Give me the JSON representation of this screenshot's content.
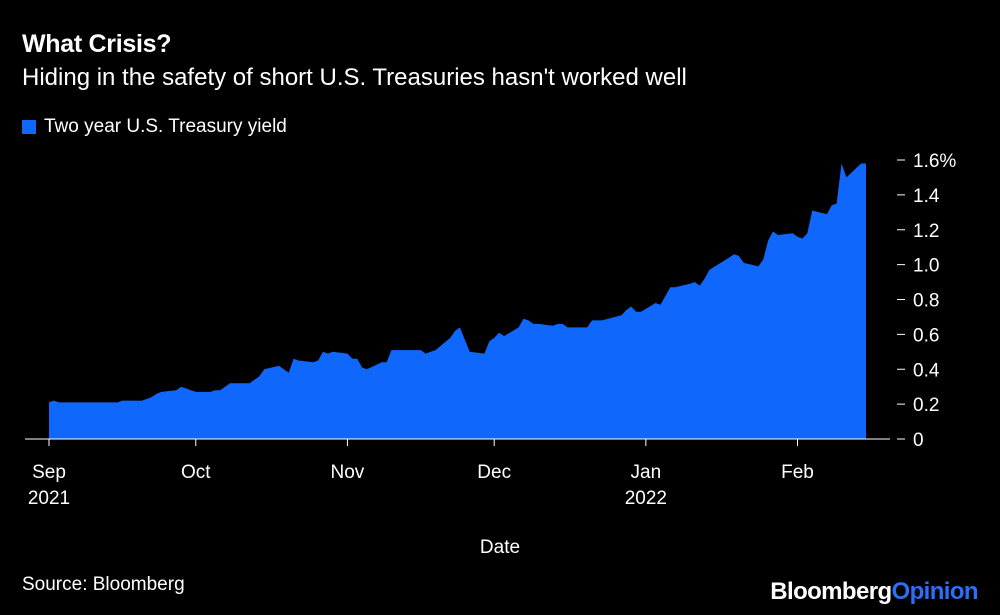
{
  "colors": {
    "background": "#000000",
    "area": "#0f68fb",
    "text": "#ffffff",
    "brand_accent": "#2c6ff5"
  },
  "header": {
    "title": "What Crisis?",
    "subtitle": "Hiding in the safety of short U.S. Treasuries hasn't worked well"
  },
  "footer": {
    "source": "Source: Bloomberg",
    "brand_main": "Bloomberg",
    "brand_accent": "Opinion"
  },
  "chart_data": {
    "type": "area",
    "legend": {
      "position": "top-left",
      "entries": [
        "Two year U.S. Treasury yield"
      ]
    },
    "series": [
      {
        "name": "Two year U.S. Treasury yield",
        "points": [
          [
            "2021-09-01",
            0.21
          ],
          [
            "2021-09-02",
            0.22
          ],
          [
            "2021-09-03",
            0.21
          ],
          [
            "2021-09-07",
            0.21
          ],
          [
            "2021-09-08",
            0.21
          ],
          [
            "2021-09-09",
            0.21
          ],
          [
            "2021-09-10",
            0.21
          ],
          [
            "2021-09-13",
            0.21
          ],
          [
            "2021-09-14",
            0.21
          ],
          [
            "2021-09-15",
            0.21
          ],
          [
            "2021-09-16",
            0.22
          ],
          [
            "2021-09-17",
            0.22
          ],
          [
            "2021-09-20",
            0.22
          ],
          [
            "2021-09-21",
            0.23
          ],
          [
            "2021-09-22",
            0.24
          ],
          [
            "2021-09-23",
            0.26
          ],
          [
            "2021-09-24",
            0.27
          ],
          [
            "2021-09-27",
            0.28
          ],
          [
            "2021-09-28",
            0.3
          ],
          [
            "2021-09-29",
            0.29
          ],
          [
            "2021-09-30",
            0.28
          ],
          [
            "2021-10-01",
            0.27
          ],
          [
            "2021-10-04",
            0.27
          ],
          [
            "2021-10-05",
            0.28
          ],
          [
            "2021-10-06",
            0.28
          ],
          [
            "2021-10-07",
            0.3
          ],
          [
            "2021-10-08",
            0.32
          ],
          [
            "2021-10-11",
            0.32
          ],
          [
            "2021-10-12",
            0.32
          ],
          [
            "2021-10-13",
            0.34
          ],
          [
            "2021-10-14",
            0.36
          ],
          [
            "2021-10-15",
            0.4
          ],
          [
            "2021-10-18",
            0.42
          ],
          [
            "2021-10-19",
            0.4
          ],
          [
            "2021-10-20",
            0.38
          ],
          [
            "2021-10-21",
            0.46
          ],
          [
            "2021-10-22",
            0.45
          ],
          [
            "2021-10-25",
            0.44
          ],
          [
            "2021-10-26",
            0.45
          ],
          [
            "2021-10-27",
            0.5
          ],
          [
            "2021-10-28",
            0.49
          ],
          [
            "2021-10-29",
            0.5
          ],
          [
            "2021-11-01",
            0.49
          ],
          [
            "2021-11-02",
            0.46
          ],
          [
            "2021-11-03",
            0.46
          ],
          [
            "2021-11-04",
            0.41
          ],
          [
            "2021-11-05",
            0.4
          ],
          [
            "2021-11-08",
            0.44
          ],
          [
            "2021-11-09",
            0.44
          ],
          [
            "2021-11-10",
            0.51
          ],
          [
            "2021-11-12",
            0.51
          ],
          [
            "2021-11-15",
            0.51
          ],
          [
            "2021-11-16",
            0.51
          ],
          [
            "2021-11-17",
            0.49
          ],
          [
            "2021-11-18",
            0.5
          ],
          [
            "2021-11-19",
            0.51
          ],
          [
            "2021-11-22",
            0.58
          ],
          [
            "2021-11-23",
            0.62
          ],
          [
            "2021-11-24",
            0.64
          ],
          [
            "2021-11-26",
            0.5
          ],
          [
            "2021-11-29",
            0.49
          ],
          [
            "2021-11-30",
            0.56
          ],
          [
            "2021-12-01",
            0.58
          ],
          [
            "2021-12-02",
            0.61
          ],
          [
            "2021-12-03",
            0.59
          ],
          [
            "2021-12-06",
            0.64
          ],
          [
            "2021-12-07",
            0.69
          ],
          [
            "2021-12-08",
            0.68
          ],
          [
            "2021-12-09",
            0.66
          ],
          [
            "2021-12-10",
            0.66
          ],
          [
            "2021-12-13",
            0.65
          ],
          [
            "2021-12-14",
            0.66
          ],
          [
            "2021-12-15",
            0.66
          ],
          [
            "2021-12-16",
            0.64
          ],
          [
            "2021-12-17",
            0.64
          ],
          [
            "2021-12-20",
            0.64
          ],
          [
            "2021-12-21",
            0.68
          ],
          [
            "2021-12-22",
            0.68
          ],
          [
            "2021-12-23",
            0.68
          ],
          [
            "2021-12-27",
            0.71
          ],
          [
            "2021-12-28",
            0.74
          ],
          [
            "2021-12-29",
            0.76
          ],
          [
            "2021-12-30",
            0.73
          ],
          [
            "2021-12-31",
            0.73
          ],
          [
            "2022-01-03",
            0.78
          ],
          [
            "2022-01-04",
            0.77
          ],
          [
            "2022-01-05",
            0.82
          ],
          [
            "2022-01-06",
            0.87
          ],
          [
            "2022-01-07",
            0.87
          ],
          [
            "2022-01-10",
            0.89
          ],
          [
            "2022-01-11",
            0.9
          ],
          [
            "2022-01-12",
            0.88
          ],
          [
            "2022-01-13",
            0.92
          ],
          [
            "2022-01-14",
            0.97
          ],
          [
            "2022-01-18",
            1.04
          ],
          [
            "2022-01-19",
            1.06
          ],
          [
            "2022-01-20",
            1.05
          ],
          [
            "2022-01-21",
            1.01
          ],
          [
            "2022-01-24",
            0.99
          ],
          [
            "2022-01-25",
            1.03
          ],
          [
            "2022-01-26",
            1.14
          ],
          [
            "2022-01-27",
            1.19
          ],
          [
            "2022-01-28",
            1.17
          ],
          [
            "2022-01-31",
            1.18
          ],
          [
            "2022-02-01",
            1.16
          ],
          [
            "2022-02-02",
            1.15
          ],
          [
            "2022-02-03",
            1.18
          ],
          [
            "2022-02-04",
            1.31
          ],
          [
            "2022-02-07",
            1.29
          ],
          [
            "2022-02-08",
            1.34
          ],
          [
            "2022-02-09",
            1.35
          ],
          [
            "2022-02-10",
            1.58
          ],
          [
            "2022-02-11",
            1.5
          ],
          [
            "2022-02-14",
            1.58
          ],
          [
            "2022-02-15",
            1.58
          ]
        ]
      }
    ],
    "x_domain": [
      "2021-09-01",
      "2022-02-15"
    ],
    "x_ticks": [
      {
        "date": "2021-09-01",
        "label": "Sep",
        "sublabel": "2021"
      },
      {
        "date": "2021-10-01",
        "label": "Oct",
        "sublabel": ""
      },
      {
        "date": "2021-11-01",
        "label": "Nov",
        "sublabel": ""
      },
      {
        "date": "2021-12-01",
        "label": "Dec",
        "sublabel": ""
      },
      {
        "date": "2022-01-01",
        "label": "Jan",
        "sublabel": "2022"
      },
      {
        "date": "2022-02-01",
        "label": "Feb",
        "sublabel": ""
      }
    ],
    "ylim": [
      0,
      1.6
    ],
    "y_ticks": [
      {
        "value": 0,
        "label": "0"
      },
      {
        "value": 0.2,
        "label": "0.2"
      },
      {
        "value": 0.4,
        "label": "0.4"
      },
      {
        "value": 0.6,
        "label": "0.6"
      },
      {
        "value": 0.8,
        "label": "0.8"
      },
      {
        "value": 1.0,
        "label": "1.0"
      },
      {
        "value": 1.2,
        "label": "1.2"
      },
      {
        "value": 1.4,
        "label": "1.4"
      },
      {
        "value": 1.6,
        "label": "1.6%"
      }
    ],
    "y_axis_position": "right",
    "grid": false,
    "xlabel": "Date",
    "ylabel": ""
  }
}
